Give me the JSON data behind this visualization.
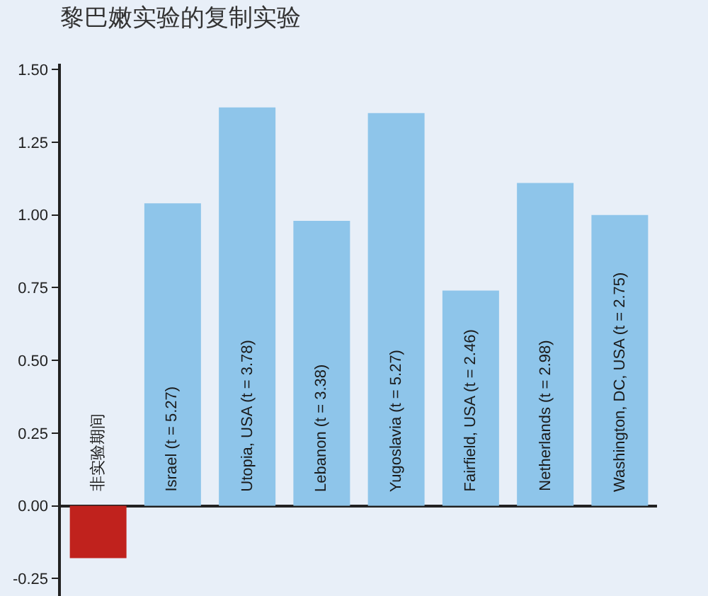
{
  "chart_data": {
    "type": "bar",
    "title": "黎巴嫩实验的复制实验",
    "categories": [
      "非实验期间",
      "Israel (t = 5.27)",
      "Utopia, USA (t = 3.78)",
      "Lebanon (t = 3.38)",
      "Yugoslavia (t = 5.27)",
      "Fairfield, USA (t = 2.46)",
      "Netherlands (t = 2.98)",
      "Washington, DC, USA (t = 2.75)"
    ],
    "values": [
      -0.18,
      1.04,
      1.37,
      0.98,
      1.35,
      0.74,
      1.11,
      1.0
    ],
    "colors": [
      "#c0221d",
      "#8ec5ea",
      "#8ec5ea",
      "#8ec5ea",
      "#8ec5ea",
      "#8ec5ea",
      "#8ec5ea",
      "#8ec5ea"
    ],
    "ylim": [
      -0.31,
      1.52
    ],
    "yticks": [
      -0.25,
      {
        "value": 0,
        "label": "0.00"
      },
      0.25,
      {
        "value": 0.5,
        "label": "0.50"
      },
      0.75,
      {
        "value": 1,
        "label": "1.00"
      },
      1.25,
      {
        "value": 1.5,
        "label": "1.50"
      }
    ],
    "grid": false
  }
}
